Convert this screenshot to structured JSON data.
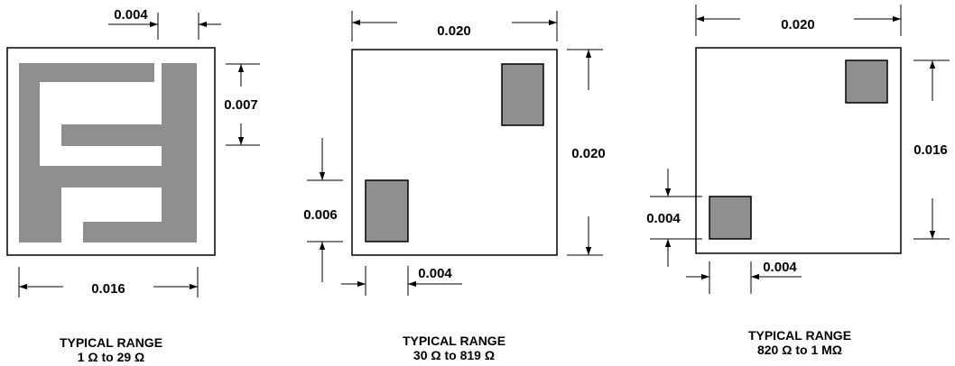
{
  "colors": {
    "pad": "#8f8f8f",
    "line": "#000000",
    "background": "#ffffff"
  },
  "figures": [
    {
      "dims": {
        "top": "0.004",
        "right": "0.007",
        "bottom": "0.016"
      },
      "caption": {
        "line1": "TYPICAL RANGE",
        "line2": "1 Ω to 29 Ω"
      }
    },
    {
      "dims": {
        "top": "0.020",
        "right": "0.020",
        "left": "0.006",
        "bottom": "0.004"
      },
      "caption": {
        "line1": "TYPICAL RANGE",
        "line2": "30 Ω to 819 Ω"
      }
    },
    {
      "dims": {
        "top": "0.020",
        "right": "0.016",
        "left": "0.004",
        "bottom": "0.004"
      },
      "caption": {
        "line1": "TYPICAL RANGE",
        "line2": "820 Ω to 1 MΩ"
      }
    }
  ]
}
